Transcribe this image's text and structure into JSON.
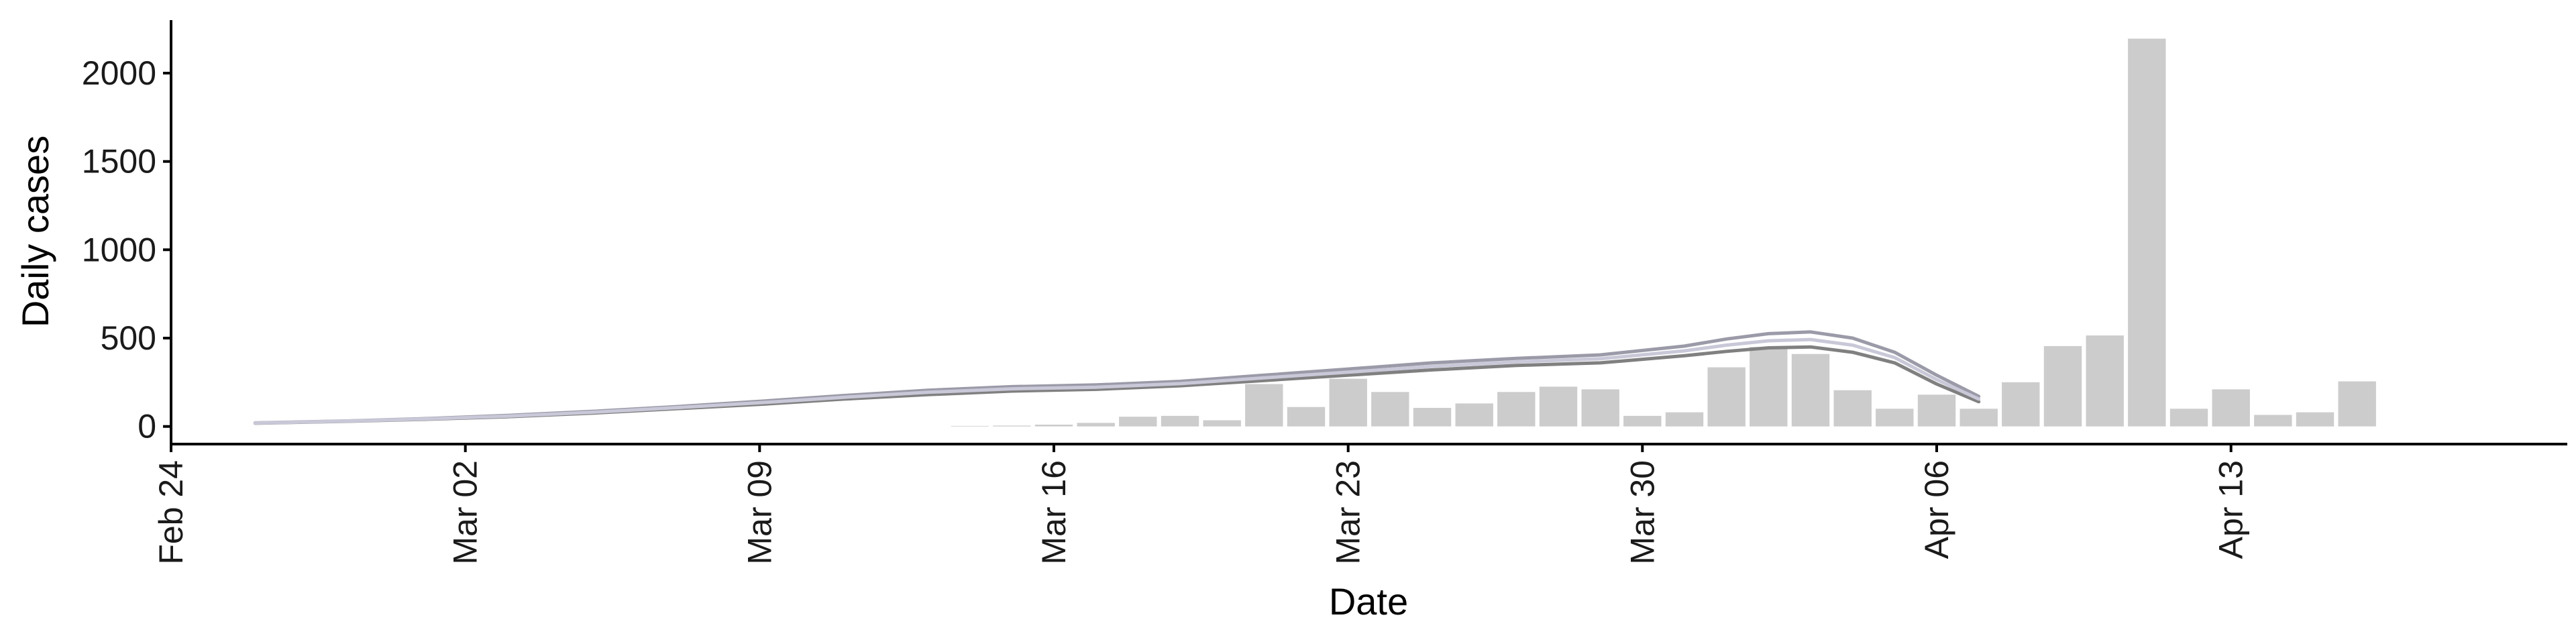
{
  "chart_data": {
    "type": "bar",
    "xlabel": "Date",
    "ylabel": "Daily cases",
    "ylim": [
      -100,
      2300
    ],
    "xlim": [
      "2020-02-24",
      "2020-04-21"
    ],
    "grid": false,
    "x_tick_labels": [
      "Feb 24",
      "Mar 02",
      "Mar 09",
      "Mar 16",
      "Mar 23",
      "Mar 30",
      "Apr 06",
      "Apr 13"
    ],
    "x_tick_dates": [
      "2020-02-24",
      "2020-03-02",
      "2020-03-09",
      "2020-03-16",
      "2020-03-23",
      "2020-03-30",
      "2020-04-06",
      "2020-04-13"
    ],
    "y_ticks": [
      0,
      500,
      1000,
      1500,
      2000
    ],
    "y_tick_labels": [
      "0",
      "500",
      "1000",
      "1500",
      "2000"
    ],
    "bars": {
      "color": "#cccccc",
      "x": [
        "2020-03-14",
        "2020-03-15",
        "2020-03-16",
        "2020-03-17",
        "2020-03-18",
        "2020-03-19",
        "2020-03-20",
        "2020-03-21",
        "2020-03-22",
        "2020-03-23",
        "2020-03-24",
        "2020-03-25",
        "2020-03-26",
        "2020-03-27",
        "2020-03-28",
        "2020-03-29",
        "2020-03-30",
        "2020-03-31",
        "2020-04-01",
        "2020-04-02",
        "2020-04-03",
        "2020-04-04",
        "2020-04-05",
        "2020-04-06",
        "2020-04-07",
        "2020-04-08",
        "2020-04-09",
        "2020-04-10",
        "2020-04-11",
        "2020-04-12",
        "2020-04-13",
        "2020-04-14",
        "2020-04-15",
        "2020-04-16"
      ],
      "values": [
        3,
        5,
        10,
        20,
        55,
        60,
        35,
        240,
        110,
        270,
        195,
        105,
        130,
        195,
        225,
        210,
        60,
        80,
        335,
        450,
        410,
        205,
        100,
        180,
        100,
        250,
        455,
        515,
        2195,
        100,
        210,
        65,
        80,
        255
      ]
    },
    "series": [
      {
        "color": "#808080",
        "x": [
          "2020-02-26",
          "2020-02-28",
          "2020-03-01",
          "2020-03-03",
          "2020-03-05",
          "2020-03-07",
          "2020-03-09",
          "2020-03-11",
          "2020-03-13",
          "2020-03-15",
          "2020-03-17",
          "2020-03-19",
          "2020-03-21",
          "2020-03-23",
          "2020-03-25",
          "2020-03-27",
          "2020-03-29",
          "2020-03-31",
          "2020-04-01",
          "2020-04-02",
          "2020-04-03",
          "2020-04-04",
          "2020-04-05",
          "2020-04-06",
          "2020-04-07"
        ],
        "values": [
          18,
          28,
          40,
          55,
          75,
          100,
          125,
          155,
          180,
          200,
          210,
          230,
          260,
          290,
          320,
          345,
          360,
          400,
          425,
          445,
          450,
          420,
          360,
          240,
          140
        ]
      },
      {
        "color": "#9a9aa8",
        "x": [
          "2020-02-26",
          "2020-02-28",
          "2020-03-01",
          "2020-03-03",
          "2020-03-05",
          "2020-03-07",
          "2020-03-09",
          "2020-03-11",
          "2020-03-13",
          "2020-03-15",
          "2020-03-17",
          "2020-03-19",
          "2020-03-21",
          "2020-03-23",
          "2020-03-25",
          "2020-03-27",
          "2020-03-29",
          "2020-03-31",
          "2020-04-01",
          "2020-04-02",
          "2020-04-03",
          "2020-04-04",
          "2020-04-05",
          "2020-04-06",
          "2020-04-07"
        ],
        "values": [
          20,
          30,
          44,
          62,
          85,
          112,
          142,
          175,
          205,
          225,
          235,
          255,
          290,
          325,
          360,
          385,
          405,
          455,
          495,
          525,
          535,
          500,
          420,
          290,
          170
        ]
      },
      {
        "color": "#c8c8d8",
        "x": [
          "2020-02-26",
          "2020-02-28",
          "2020-03-01",
          "2020-03-03",
          "2020-03-05",
          "2020-03-07",
          "2020-03-09",
          "2020-03-11",
          "2020-03-13",
          "2020-03-15",
          "2020-03-17",
          "2020-03-19",
          "2020-03-21",
          "2020-03-23",
          "2020-03-25",
          "2020-03-27",
          "2020-03-29",
          "2020-03-31",
          "2020-04-01",
          "2020-04-02",
          "2020-04-03",
          "2020-04-04",
          "2020-04-05",
          "2020-04-06",
          "2020-04-07"
        ],
        "values": [
          19,
          29,
          42,
          58,
          80,
          106,
          134,
          165,
          193,
          213,
          222,
          242,
          275,
          307,
          340,
          365,
          383,
          428,
          460,
          485,
          492,
          460,
          390,
          265,
          155
        ]
      }
    ]
  }
}
